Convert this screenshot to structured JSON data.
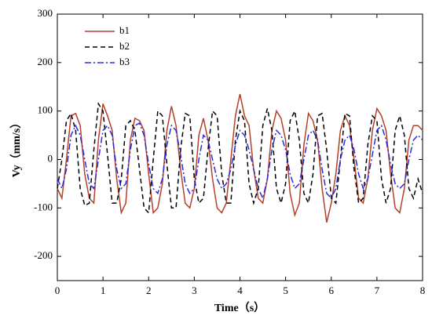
{
  "chart_data": {
    "type": "line",
    "xlabel": "Time（s）",
    "ylabel": "Vy（mm/s）",
    "xlim": [
      0,
      8
    ],
    "xticks": [
      0,
      1,
      2,
      3,
      4,
      5,
      6,
      7,
      8
    ],
    "ylim": [
      -250,
      300
    ],
    "yticks": [
      -200,
      -100,
      0,
      100,
      200,
      300
    ],
    "legend": "upper left",
    "grid": false,
    "x": [
      0,
      0.1,
      0.2,
      0.3,
      0.4,
      0.5,
      0.6,
      0.7,
      0.8,
      0.9,
      1,
      1.1,
      1.2,
      1.3,
      1.4,
      1.5,
      1.6,
      1.7,
      1.8,
      1.9,
      2,
      2.1,
      2.2,
      2.3,
      2.4,
      2.5,
      2.6,
      2.7,
      2.8,
      2.9,
      3,
      3.1,
      3.2,
      3.3,
      3.4,
      3.5,
      3.6,
      3.7,
      3.8,
      3.9,
      4,
      4.1,
      4.2,
      4.3,
      4.4,
      4.5,
      4.6,
      4.7,
      4.8,
      4.9,
      5,
      5.1,
      5.2,
      5.3,
      5.4,
      5.5,
      5.6,
      5.7,
      5.8,
      5.9,
      6,
      6.1,
      6.2,
      6.3,
      6.4,
      6.5,
      6.6,
      6.7,
      6.8,
      6.9,
      7,
      7.1,
      7.2,
      7.3,
      7.4,
      7.5,
      7.6,
      7.7,
      7.8,
      7.9,
      8
    ],
    "series": [
      {
        "name": "b1",
        "color": "#b5402a",
        "line_style": "solid",
        "values": [
          -60,
          -80,
          0,
          90,
          95,
          70,
          -30,
          -80,
          -90,
          40,
          115,
          90,
          60,
          -40,
          -110,
          -90,
          40,
          85,
          80,
          60,
          -30,
          -110,
          -100,
          -50,
          60,
          110,
          70,
          -20,
          -90,
          -100,
          -60,
          50,
          85,
          40,
          -40,
          -100,
          -110,
          -90,
          0,
          90,
          135,
          90,
          70,
          -20,
          -80,
          -90,
          -40,
          60,
          100,
          85,
          40,
          -70,
          -115,
          -90,
          30,
          95,
          80,
          40,
          -60,
          -130,
          -90,
          -30,
          60,
          90,
          70,
          0,
          -80,
          -90,
          -40,
          60,
          105,
          90,
          60,
          -30,
          -100,
          -110,
          -60,
          40,
          70,
          70,
          60
        ]
      },
      {
        "name": "b2",
        "color": "#000000",
        "line_style": "dashed",
        "values": [
          -60,
          0,
          80,
          95,
          60,
          -60,
          -95,
          -90,
          20,
          115,
          100,
          10,
          -90,
          -90,
          -40,
          70,
          80,
          60,
          -20,
          -100,
          -110,
          0,
          100,
          90,
          -10,
          -100,
          -100,
          20,
          95,
          90,
          -40,
          -90,
          -80,
          20,
          100,
          90,
          -30,
          -90,
          -90,
          40,
          100,
          80,
          -50,
          -90,
          -60,
          70,
          105,
          60,
          -60,
          -90,
          -50,
          80,
          100,
          40,
          -70,
          -90,
          -30,
          90,
          95,
          20,
          -80,
          -90,
          0,
          95,
          90,
          -20,
          -90,
          -80,
          30,
          90,
          80,
          -40,
          -90,
          -60,
          60,
          90,
          50,
          -60,
          -80,
          -40,
          -70
        ]
      },
      {
        "name": "b3",
        "color": "#2a2ae0",
        "line_style": "dashdot",
        "values": [
          -40,
          -60,
          -20,
          50,
          70,
          50,
          0,
          -50,
          -60,
          0,
          60,
          70,
          50,
          -20,
          -60,
          -50,
          20,
          70,
          75,
          50,
          -10,
          -60,
          -70,
          -40,
          30,
          70,
          60,
          10,
          -50,
          -70,
          -60,
          0,
          50,
          40,
          0,
          -40,
          -60,
          -50,
          -20,
          30,
          60,
          50,
          20,
          -20,
          -60,
          -80,
          -40,
          20,
          60,
          50,
          20,
          -30,
          -60,
          -50,
          0,
          50,
          60,
          40,
          -20,
          -70,
          -80,
          -60,
          0,
          40,
          50,
          20,
          -30,
          -60,
          -40,
          10,
          60,
          70,
          40,
          -10,
          -50,
          -60,
          -50,
          0,
          40,
          50,
          40
        ]
      }
    ]
  }
}
